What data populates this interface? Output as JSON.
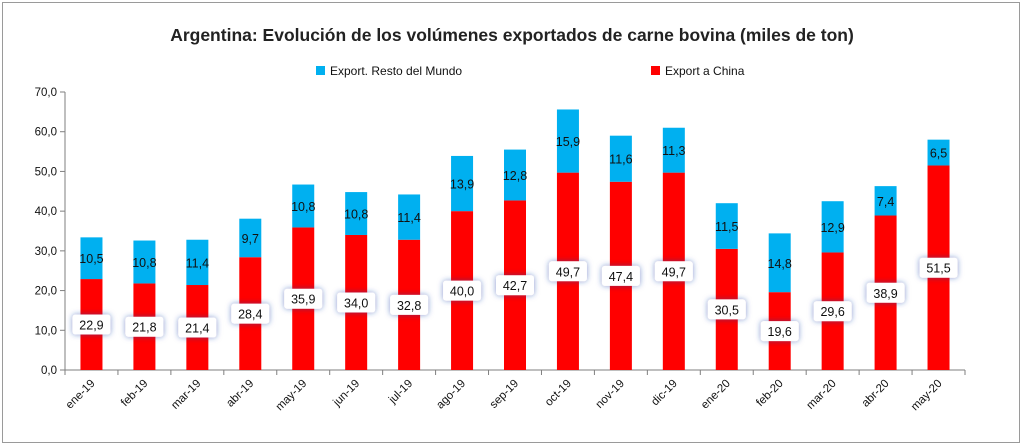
{
  "chart_data": {
    "type": "bar",
    "stacked": true,
    "title": "Argentina: Evolución de los volúmenes exportados de carne bovina (miles de ton)",
    "categories": [
      "ene-19",
      "feb-19",
      "mar-19",
      "abr-19",
      "may-19",
      "jun-19",
      "jul-19",
      "ago-19",
      "sep-19",
      "oct-19",
      "nov-19",
      "dic-19",
      "ene-20",
      "feb-20",
      "mar-20",
      "abr-20",
      "may-20"
    ],
    "series": [
      {
        "name": "Export a China",
        "color": "#ff0000",
        "values": [
          22.9,
          21.8,
          21.4,
          28.4,
          35.9,
          34.0,
          32.8,
          40.0,
          42.7,
          49.7,
          47.4,
          49.7,
          30.5,
          19.6,
          29.6,
          38.9,
          51.5
        ],
        "labels": [
          "22,9",
          "21,8",
          "21,4",
          "28,4",
          "35,9",
          "34,0",
          "32,8",
          "40,0",
          "42,7",
          "49,7",
          "47,4",
          "49,7",
          "30,5",
          "19,6",
          "29,6",
          "38,9",
          "51,5"
        ]
      },
      {
        "name": "Export. Resto del Mundo",
        "color": "#00b0f0",
        "values": [
          10.5,
          10.8,
          11.4,
          9.7,
          10.8,
          10.8,
          11.4,
          13.9,
          12.8,
          15.9,
          11.6,
          11.3,
          11.5,
          14.8,
          12.9,
          7.4,
          6.5
        ],
        "labels": [
          "10,5",
          "10,8",
          "11,4",
          "9,7",
          "10,8",
          "10,8",
          "11,4",
          "13,9",
          "12,8",
          "15,9",
          "11,6",
          "11,3",
          "11,5",
          "14,8",
          "12,9",
          "7,4",
          "6,5"
        ]
      }
    ],
    "ylim": [
      0,
      70
    ],
    "yticks": [
      "0,0",
      "10,0",
      "20,0",
      "30,0",
      "40,0",
      "50,0",
      "60,0",
      "70,0"
    ],
    "grid": false,
    "legend_position": "top"
  }
}
